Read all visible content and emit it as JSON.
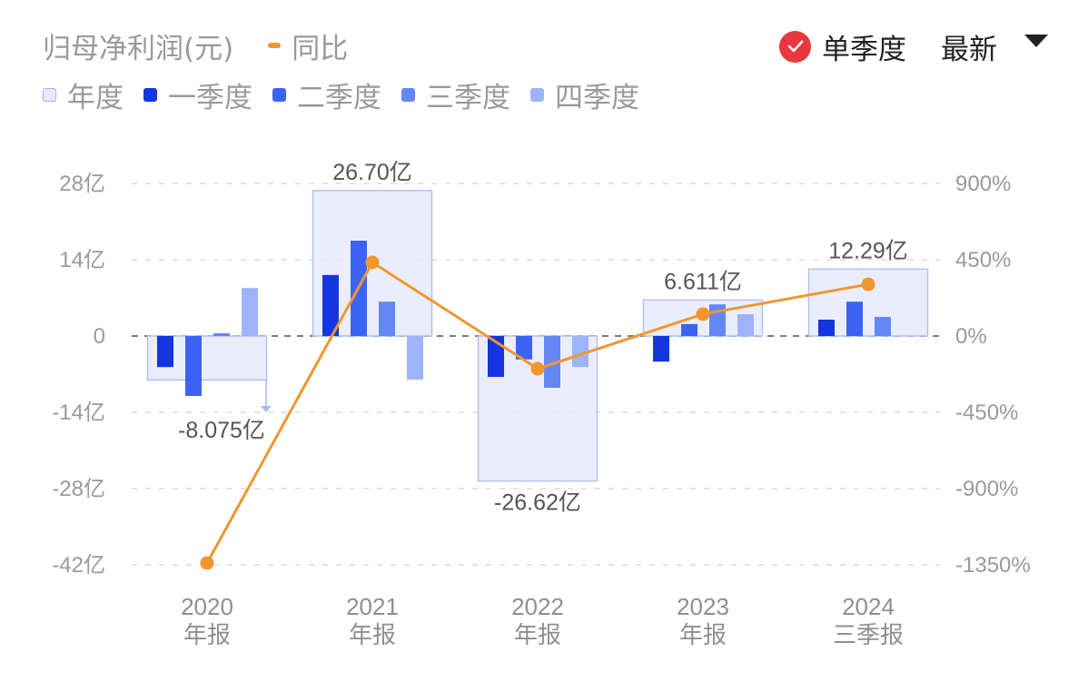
{
  "header": {
    "metric_title": "归母净利润(元)",
    "yoy_label": "同比",
    "mode_label": "单季度",
    "sort_label": "最新",
    "mode_checked": true,
    "check_color": "#e8373e",
    "yoy_color": "#f2962f"
  },
  "legend": [
    {
      "label": "年度",
      "color": "#e6ebfb",
      "border": "#9fb2ee"
    },
    {
      "label": "一季度",
      "color": "#1535e0"
    },
    {
      "label": "二季度",
      "color": "#3d63f5"
    },
    {
      "label": "三季度",
      "color": "#6587f6"
    },
    {
      "label": "四季度",
      "color": "#9eb4fa"
    }
  ],
  "chart_data": {
    "type": "bar+line",
    "title": "归母净利润(元)",
    "categories": [
      "2020\n年报",
      "2021\n年报",
      "2022\n年报",
      "2023\n年报",
      "2024\n三季报"
    ],
    "category_lines": [
      [
        "2020",
        "年报"
      ],
      [
        "2021",
        "年报"
      ],
      [
        "2022",
        "年报"
      ],
      [
        "2023",
        "年报"
      ],
      [
        "2024",
        "三季报"
      ]
    ],
    "left_axis": {
      "unit": "亿",
      "ticks": [
        "28亿",
        "14亿",
        "0",
        "-14亿",
        "-28亿",
        "-42亿"
      ],
      "range": [
        -42,
        28
      ]
    },
    "right_axis": {
      "unit": "%",
      "ticks": [
        "900%",
        "450%",
        "0%",
        "-450%",
        "-900%",
        "-1350%"
      ],
      "range": [
        -1350,
        900
      ]
    },
    "annual": {
      "name": "年度",
      "values": [
        -8.075,
        26.7,
        -26.62,
        6.611,
        12.29
      ],
      "labels": [
        "-8.075亿",
        "26.70亿",
        "-26.62亿",
        "6.611亿",
        "12.29亿"
      ]
    },
    "series": [
      {
        "name": "一季度",
        "values": [
          -5.7,
          11.2,
          -7.5,
          -4.7,
          3.0
        ]
      },
      {
        "name": "二季度",
        "values": [
          -11.0,
          17.5,
          -4.3,
          2.2,
          6.3
        ]
      },
      {
        "name": "三季度",
        "values": [
          0.5,
          6.3,
          -9.5,
          5.8,
          3.5
        ]
      },
      {
        "name": "四季度",
        "values": [
          8.8,
          -8.0,
          -5.7,
          4.0,
          null
        ]
      }
    ],
    "line": {
      "name": "同比",
      "axis": "right",
      "values": [
        -1339,
        434,
        -193,
        129,
        305
      ]
    },
    "grid": true,
    "legend_position": "top"
  }
}
